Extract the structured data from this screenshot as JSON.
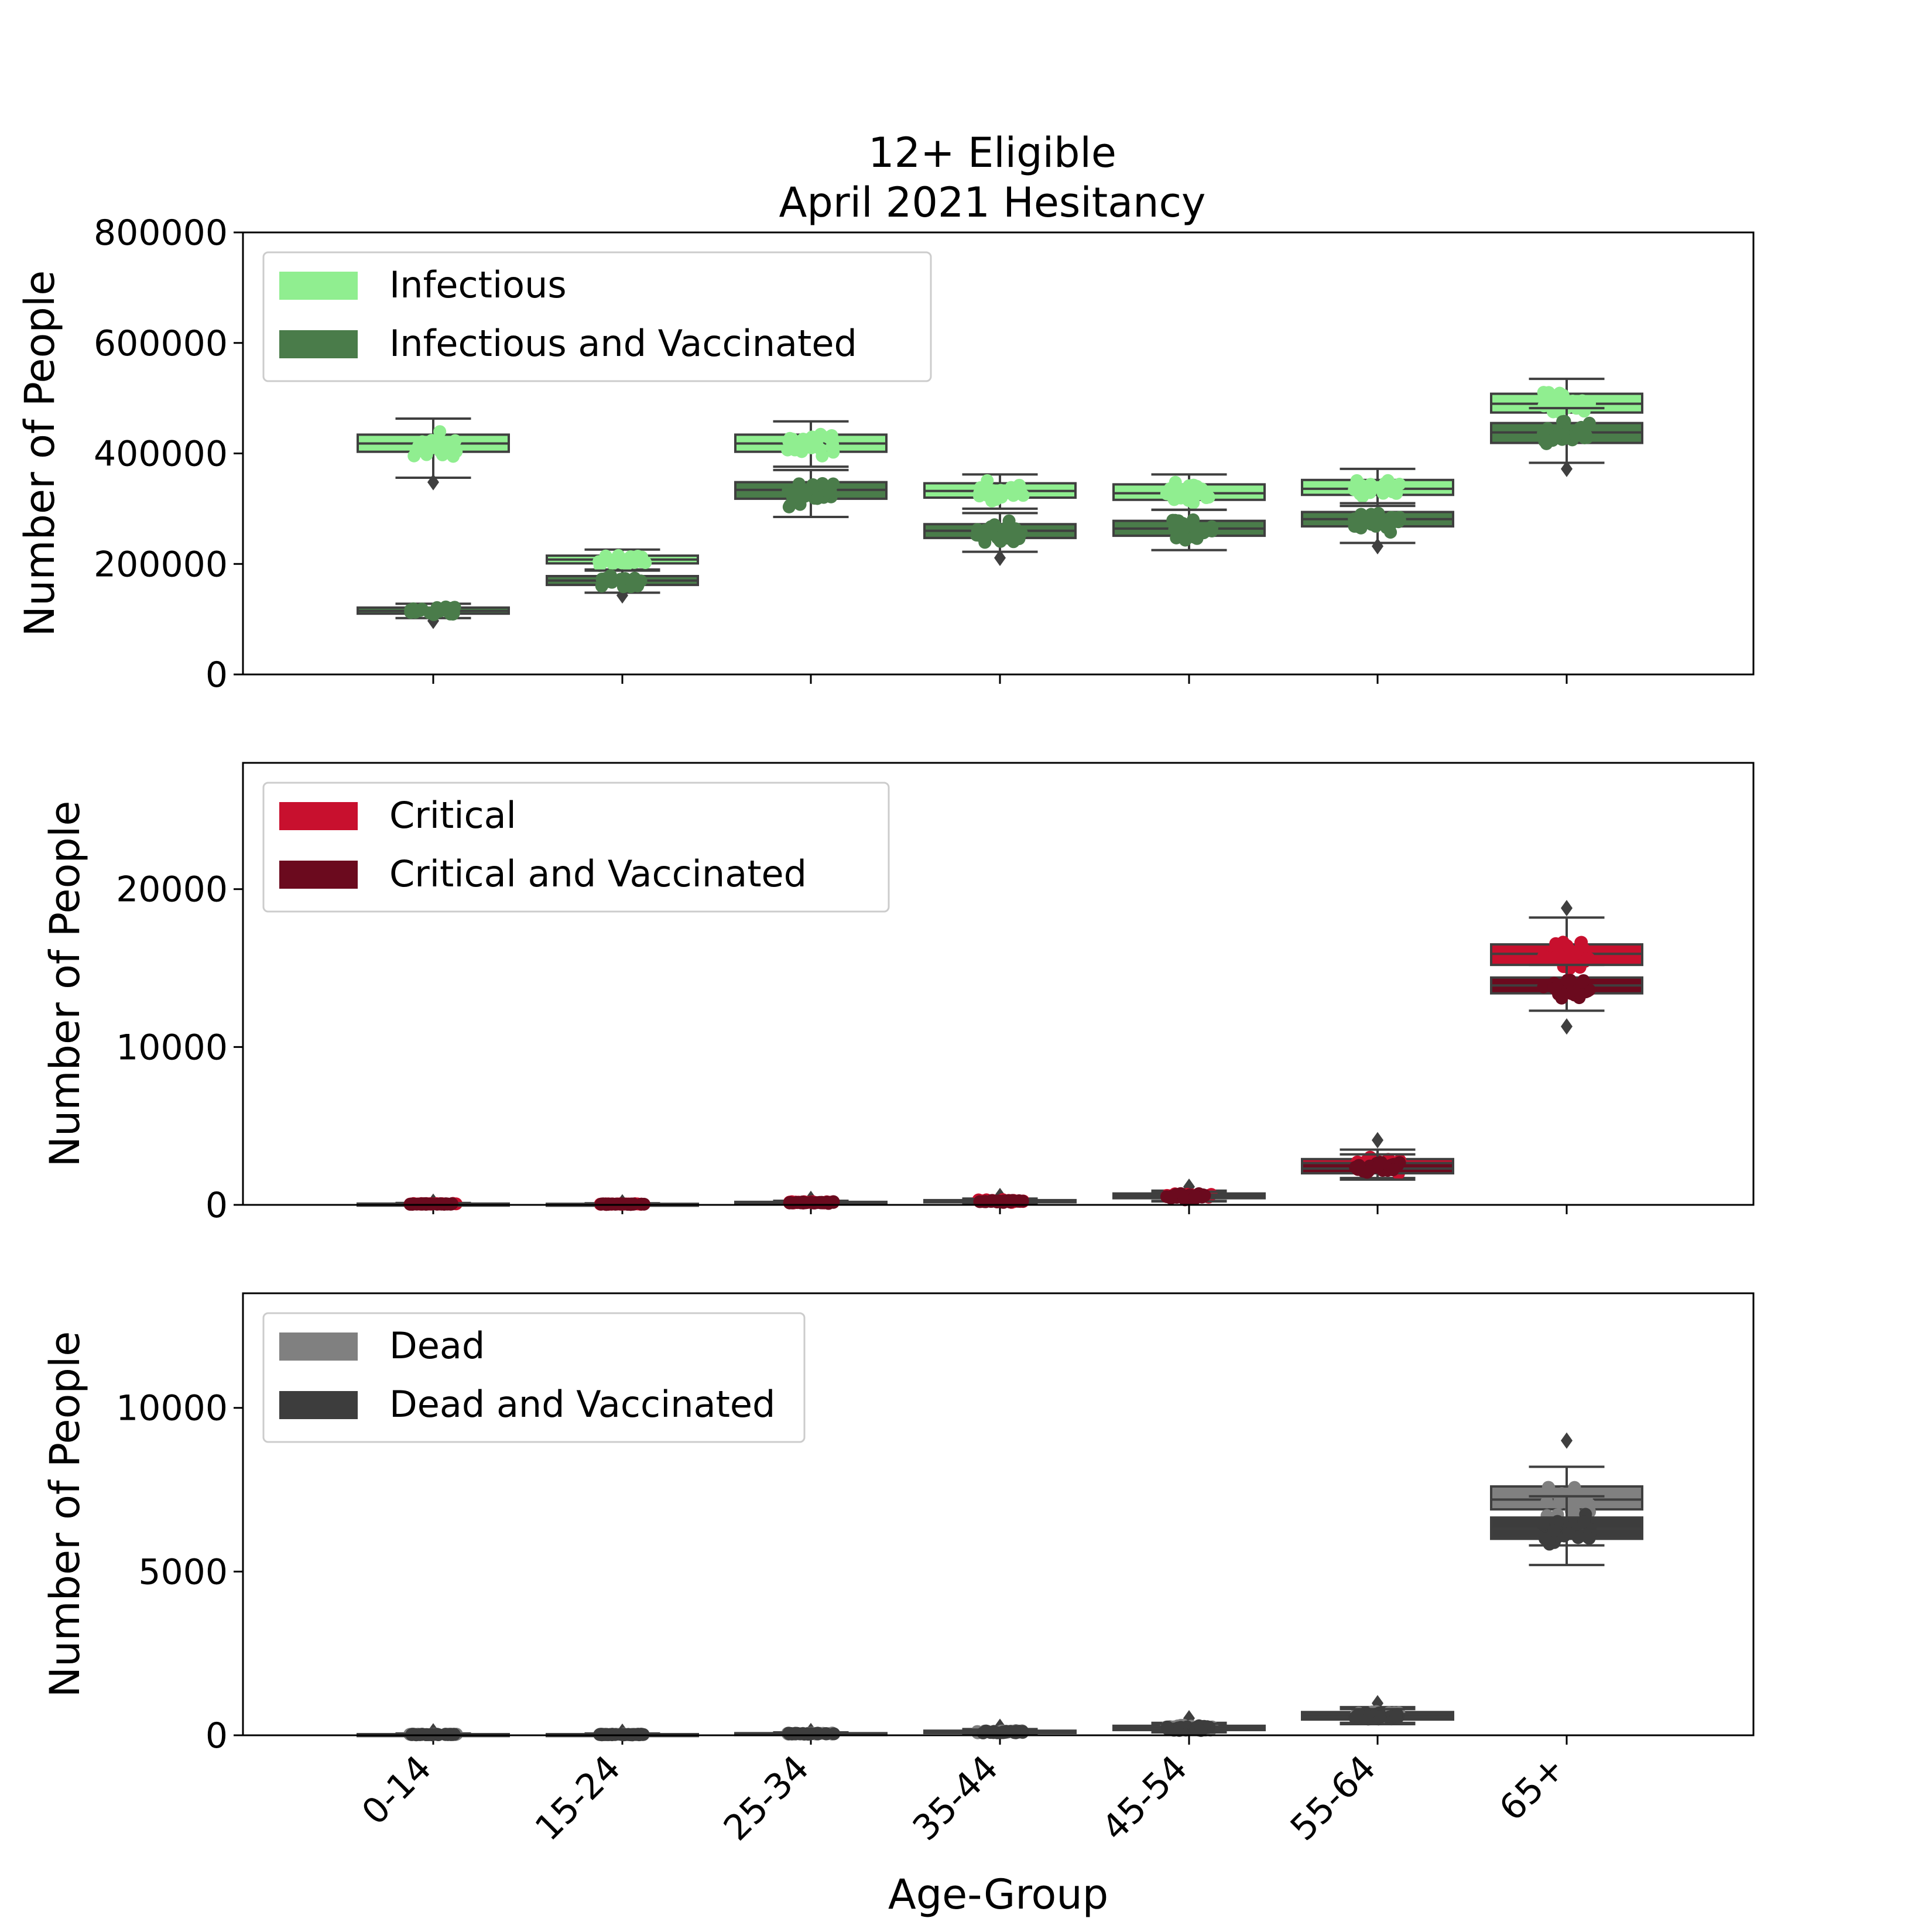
{
  "title_line1": "12+ Eligible",
  "title_line2": "April 2021 Hesitancy",
  "chart_data": [
    {
      "type": "box",
      "categories": [
        "0-14",
        "15-24",
        "25-34",
        "35-44",
        "45-54",
        "55-64",
        "65+"
      ],
      "ylabel": "Number of People",
      "ylim": [
        0,
        800000
      ],
      "yticks": [
        0,
        200000,
        400000,
        600000,
        800000
      ],
      "ytick_labels": [
        "0",
        "200000",
        "400000",
        "600000",
        "800000"
      ],
      "legend_position": "top-left",
      "series": [
        {
          "name": "Infectious",
          "color": "#90ee90",
          "boxes": [
            {
              "whisker_low": 356000,
              "q1": 403000,
              "median": 418000,
              "q3": 434000,
              "whisker_high": 463000,
              "outliers": [
                348000
              ]
            },
            {
              "whisker_low": 190000,
              "q1": 201000,
              "median": 208000,
              "q3": 215000,
              "whisker_high": 226000,
              "outliers": []
            },
            {
              "whisker_low": 376000,
              "q1": 403000,
              "median": 418000,
              "q3": 434000,
              "whisker_high": 458000,
              "outliers": []
            },
            {
              "whisker_low": 300000,
              "q1": 320000,
              "median": 332000,
              "q3": 346000,
              "whisker_high": 362000,
              "outliers": []
            },
            {
              "whisker_low": 298000,
              "q1": 316000,
              "median": 328000,
              "q3": 344000,
              "whisker_high": 362000,
              "outliers": []
            },
            {
              "whisker_low": 305000,
              "q1": 325000,
              "median": 336000,
              "q3": 352000,
              "whisker_high": 372000,
              "outliers": []
            },
            {
              "whisker_low": 447000,
              "q1": 474000,
              "median": 490000,
              "q3": 508000,
              "whisker_high": 535000,
              "outliers": []
            }
          ]
        },
        {
          "name": "Infectious and Vaccinated",
          "color": "#4a7c4a",
          "boxes": [
            {
              "whisker_low": 102000,
              "q1": 110000,
              "median": 115000,
              "q3": 121000,
              "whisker_high": 128000,
              "outliers": [
                97000
              ]
            },
            {
              "whisker_low": 148000,
              "q1": 162000,
              "median": 170000,
              "q3": 178000,
              "whisker_high": 188000,
              "outliers": [
                143000
              ]
            },
            {
              "whisker_low": 285000,
              "q1": 318000,
              "median": 334000,
              "q3": 348000,
              "whisker_high": 370000,
              "outliers": []
            },
            {
              "whisker_low": 222000,
              "q1": 247000,
              "median": 260000,
              "q3": 272000,
              "whisker_high": 292000,
              "outliers": [
                211000
              ]
            },
            {
              "whisker_low": 225000,
              "q1": 251000,
              "median": 264000,
              "q3": 278000,
              "whisker_high": 298000,
              "outliers": []
            },
            {
              "whisker_low": 238000,
              "q1": 268000,
              "median": 281000,
              "q3": 294000,
              "whisker_high": 310000,
              "outliers": [
                232000
              ]
            },
            {
              "whisker_low": 383000,
              "q1": 419000,
              "median": 438000,
              "q3": 455000,
              "whisker_high": 482000,
              "outliers": [
                372000
              ]
            }
          ]
        }
      ]
    },
    {
      "type": "box",
      "categories": [
        "0-14",
        "15-24",
        "25-34",
        "35-44",
        "45-54",
        "55-64",
        "65+"
      ],
      "ylabel": "Number of People",
      "ylim": [
        0,
        28000
      ],
      "yticks": [
        0,
        10000,
        20000
      ],
      "ytick_labels": [
        "0",
        "10000",
        "20000"
      ],
      "legend_position": "top-left",
      "series": [
        {
          "name": "Critical",
          "color": "#c8102e",
          "boxes": [
            {
              "whisker_low": 20,
              "q1": 45,
              "median": 60,
              "q3": 80,
              "whisker_high": 120,
              "outliers": [
                200
              ]
            },
            {
              "whisker_low": 15,
              "q1": 35,
              "median": 50,
              "q3": 65,
              "whisker_high": 100,
              "outliers": [
                160
              ]
            },
            {
              "whisker_low": 60,
              "q1": 110,
              "median": 150,
              "q3": 190,
              "whisker_high": 260,
              "outliers": [
                380
              ]
            },
            {
              "whisker_low": 110,
              "q1": 190,
              "median": 240,
              "q3": 300,
              "whisker_high": 400,
              "outliers": [
                560
              ]
            },
            {
              "whisker_low": 250,
              "q1": 480,
              "median": 580,
              "q3": 720,
              "whisker_high": 900,
              "outliers": [
                1150
              ]
            },
            {
              "whisker_low": 1700,
              "q1": 2200,
              "median": 2500,
              "q3": 2900,
              "whisker_high": 3500,
              "outliers": [
                4100
              ]
            },
            {
              "whisker_low": 13700,
              "q1": 15200,
              "median": 15900,
              "q3": 16500,
              "whisker_high": 18200,
              "outliers": [
                18800
              ]
            }
          ]
        },
        {
          "name": "Critical and Vaccinated",
          "color": "#6b0a1e",
          "boxes": [
            {
              "whisker_low": 15,
              "q1": 35,
              "median": 50,
              "q3": 65,
              "whisker_high": 100,
              "outliers": []
            },
            {
              "whisker_low": 10,
              "q1": 30,
              "median": 45,
              "q3": 60,
              "whisker_high": 90,
              "outliers": []
            },
            {
              "whisker_low": 50,
              "q1": 95,
              "median": 130,
              "q3": 170,
              "whisker_high": 240,
              "outliers": []
            },
            {
              "whisker_low": 100,
              "q1": 170,
              "median": 220,
              "q3": 275,
              "whisker_high": 370,
              "outliers": []
            },
            {
              "whisker_low": 220,
              "q1": 420,
              "median": 520,
              "q3": 650,
              "whisker_high": 830,
              "outliers": []
            },
            {
              "whisker_low": 1600,
              "q1": 2000,
              "median": 2300,
              "q3": 2650,
              "whisker_high": 3200,
              "outliers": []
            },
            {
              "whisker_low": 12300,
              "q1": 13400,
              "median": 13900,
              "q3": 14400,
              "whisker_high": 15200,
              "outliers": [
                11300
              ]
            }
          ]
        }
      ]
    },
    {
      "type": "box",
      "categories": [
        "0-14",
        "15-24",
        "25-34",
        "35-44",
        "45-54",
        "55-64",
        "65+"
      ],
      "xlabel": "Age-Group",
      "ylabel": "Number of People",
      "ylim": [
        0,
        13500
      ],
      "yticks": [
        0,
        5000,
        10000
      ],
      "ytick_labels": [
        "0",
        "5000",
        "10000"
      ],
      "legend_position": "top-left",
      "series": [
        {
          "name": "Dead",
          "color": "#808080",
          "boxes": [
            {
              "whisker_low": 5,
              "q1": 15,
              "median": 25,
              "q3": 35,
              "whisker_high": 55,
              "outliers": [
                120
              ]
            },
            {
              "whisker_low": 5,
              "q1": 15,
              "median": 25,
              "q3": 35,
              "whisker_high": 55,
              "outliers": [
                110
              ]
            },
            {
              "whisker_low": 15,
              "q1": 35,
              "median": 50,
              "q3": 65,
              "whisker_high": 90,
              "outliers": [
                130
              ]
            },
            {
              "whisker_low": 40,
              "q1": 80,
              "median": 110,
              "q3": 140,
              "whisker_high": 190,
              "outliers": [
                260
              ]
            },
            {
              "whisker_low": 100,
              "q1": 180,
              "median": 230,
              "q3": 290,
              "whisker_high": 380,
              "outliers": [
                520
              ]
            },
            {
              "whisker_low": 380,
              "q1": 530,
              "median": 610,
              "q3": 710,
              "whisker_high": 860,
              "outliers": [
                980
              ]
            },
            {
              "whisker_low": 5800,
              "q1": 6900,
              "median": 7200,
              "q3": 7600,
              "whisker_high": 8200,
              "outliers": [
                9000
              ]
            }
          ]
        },
        {
          "name": "Dead and Vaccinated",
          "color": "#3d3d3d",
          "boxes": [
            {
              "whisker_low": 5,
              "q1": 10,
              "median": 20,
              "q3": 30,
              "whisker_high": 45,
              "outliers": []
            },
            {
              "whisker_low": 5,
              "q1": 10,
              "median": 20,
              "q3": 30,
              "whisker_high": 45,
              "outliers": []
            },
            {
              "whisker_low": 10,
              "q1": 30,
              "median": 45,
              "q3": 60,
              "whisker_high": 85,
              "outliers": []
            },
            {
              "whisker_low": 35,
              "q1": 70,
              "median": 100,
              "q3": 130,
              "whisker_high": 175,
              "outliers": []
            },
            {
              "whisker_low": 90,
              "q1": 160,
              "median": 210,
              "q3": 265,
              "whisker_high": 350,
              "outliers": []
            },
            {
              "whisker_low": 340,
              "q1": 480,
              "median": 560,
              "q3": 650,
              "whisker_high": 800,
              "outliers": []
            },
            {
              "whisker_low": 5200,
              "q1": 6000,
              "median": 6300,
              "q3": 6650,
              "whisker_high": 7300,
              "outliers": []
            }
          ]
        }
      ]
    }
  ]
}
